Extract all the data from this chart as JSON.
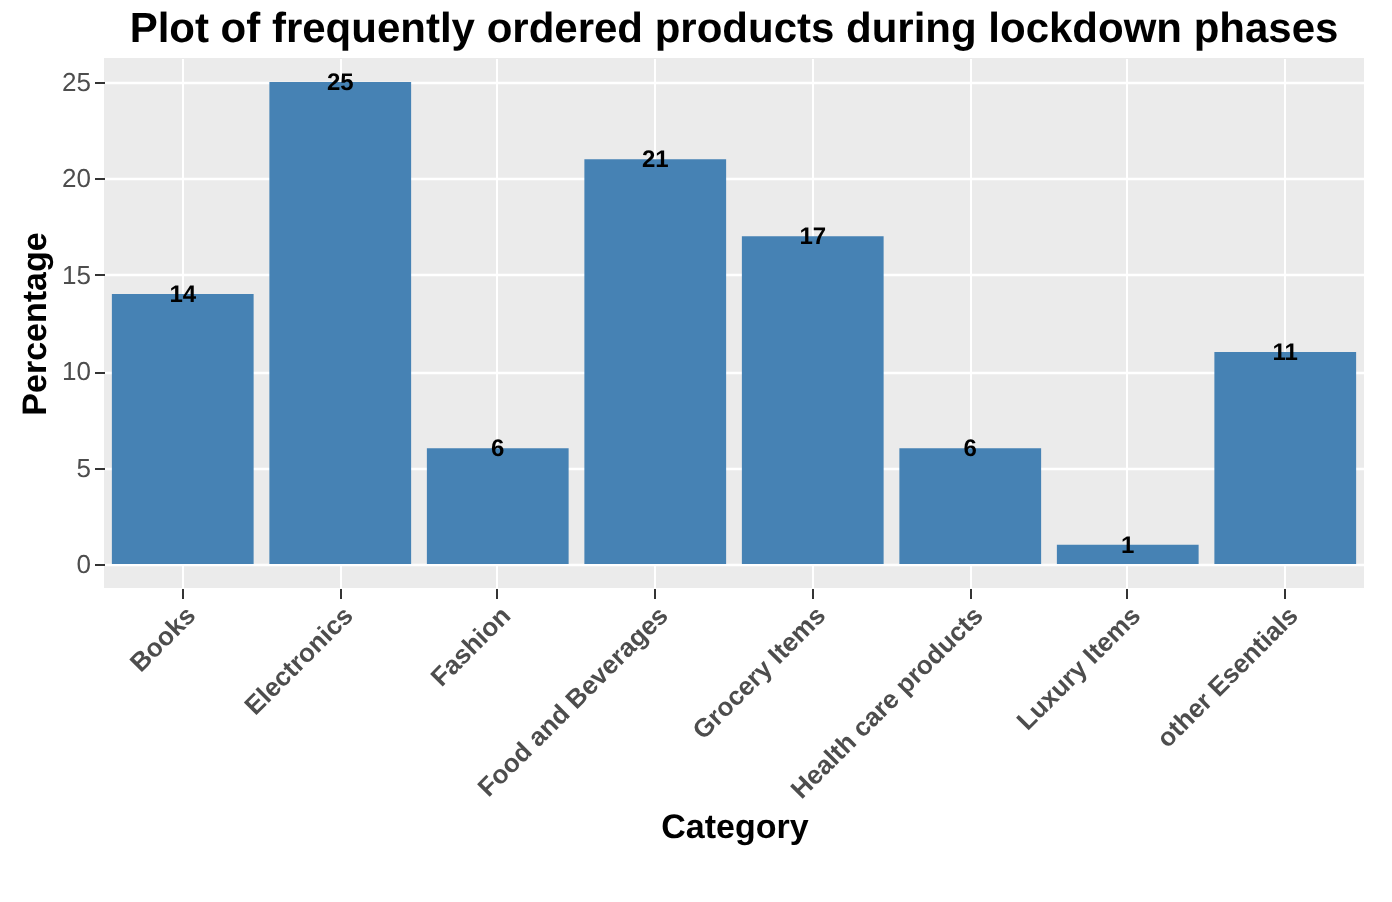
{
  "chart_data": {
    "type": "bar",
    "title": "Plot of frequently ordered products during lockdown phases",
    "xlabel": "Category",
    "ylabel": "Percentage",
    "categories": [
      "Books",
      "Electronics",
      "Fashion",
      "Food and Beverages",
      "Grocery Items",
      "Health care products",
      "Luxury Items",
      "other Esentials"
    ],
    "values": [
      14,
      25,
      6,
      21,
      17,
      6,
      1,
      11
    ],
    "color": "#4682b4",
    "ylim": [
      -1.25,
      26.25
    ],
    "yticks": [
      0,
      5,
      10,
      15,
      20,
      25
    ],
    "grid": true,
    "data_labels": true
  }
}
